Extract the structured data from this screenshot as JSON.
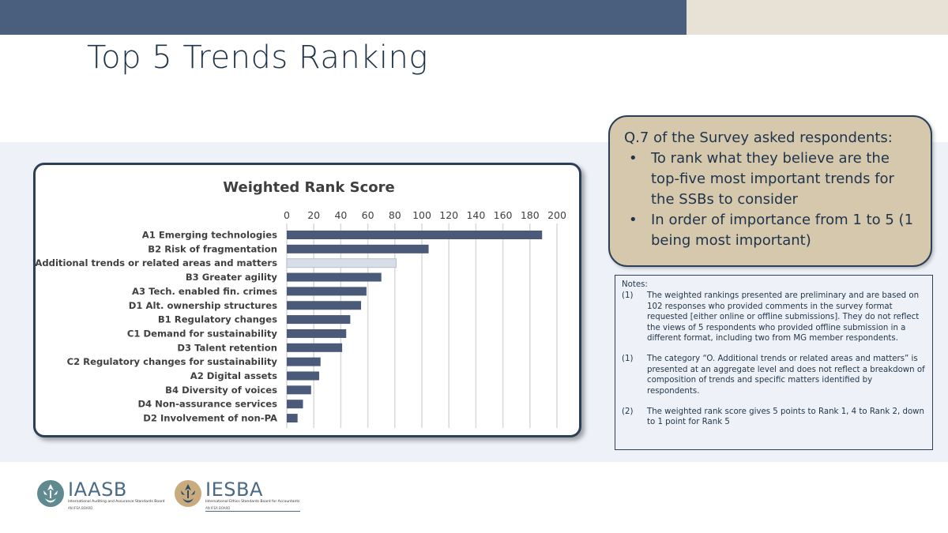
{
  "slide": {
    "title": "Top 5 Trends Ranking"
  },
  "question": {
    "intro": "Q.7 of the Survey asked respondents:",
    "bullets": [
      "To rank what they believe are the top-five most important trends for the SSBs to consider",
      "In order of importance from 1 to 5 (1 being most important)"
    ],
    "bullet_glyph": "•"
  },
  "notes": {
    "title": "Notes:",
    "items": [
      {
        "num": "(1)",
        "text": "The weighted rankings presented are preliminary and are based on 102 responses who provided comments in the survey format requested [either online or offline submissions]. They do not reflect the views of 5 respondents who provided offline submission in a different format, including two from MG member respondents."
      },
      {
        "num": "(1)",
        "text": "The category “O. Additional trends or related areas and matters” is presented at an aggregate level and does not reflect a breakdown of composition of trends and specific matters identified by respondents."
      },
      {
        "num": "(2)",
        "text": "The weighted rank score gives 5 points to Rank 1, 4 to Rank 2, down to 1 point for Rank 5"
      }
    ]
  },
  "chart_data": {
    "type": "bar",
    "orientation": "horizontal",
    "title": "Weighted Rank Score",
    "xlabel": "",
    "ylabel": "",
    "xlim": [
      0,
      200
    ],
    "ticks": [
      0,
      20,
      40,
      60,
      80,
      100,
      120,
      140,
      160,
      180,
      200
    ],
    "axis_position": "top",
    "grid": true,
    "categories": [
      "A1 Emerging technologies",
      "B2 Risk of fragmentation",
      "O. Additional trends or related areas and matters",
      "B3 Greater agility",
      "A3 Tech. enabled fin. crimes",
      "D1 Alt. ownership structures",
      "B1 Regulatory changes",
      "C1 Demand for sustainability",
      "D3 Talent retention",
      "C2 Regulatory changes for sustainability",
      "A2 Digital assets",
      "B4 Diversity of voices",
      "D4 Non-assurance services",
      "D2 Involvement of non-PA"
    ],
    "values": [
      189,
      105,
      81,
      70,
      59,
      55,
      47,
      44,
      41,
      25,
      24,
      18,
      12,
      8
    ],
    "highlight_index": 2,
    "colors": {
      "bar": "#4a5a78",
      "highlight": "#d8dee8",
      "grid": "#d9d9d9"
    }
  },
  "logos": [
    {
      "name": "IAASB",
      "subtitle": "International Auditing and Assurance Standards Board",
      "board": "AN IFEA BOARD"
    },
    {
      "name": "IESBA",
      "subtitle": "International Ethics Standards Board for Accountants",
      "board": "AN IFEA BOARD"
    }
  ]
}
